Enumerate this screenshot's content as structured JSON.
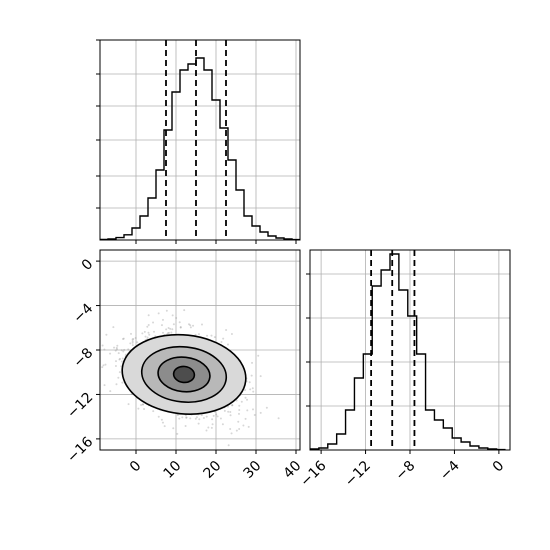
{
  "chart_data": {
    "type": "corner",
    "title": "",
    "grid": true,
    "colors": {
      "line": "#000000",
      "grid": "#b0b0b0",
      "points": "#8c8c8c"
    },
    "panels": [
      {
        "id": "hist_x",
        "type": "histogram",
        "xlim": [
          -9,
          41
        ],
        "ylim": [
          0,
          1.0
        ],
        "ytick_values": [
          0.16,
          0.32,
          0.5,
          0.67,
          0.83,
          1.0
        ],
        "bin_edges": [
          -9,
          -7,
          -5,
          -3,
          -1,
          1,
          3,
          5,
          7,
          9,
          11,
          13,
          15,
          17,
          19,
          21,
          23,
          25,
          27,
          29,
          31,
          33,
          35,
          37,
          39,
          41
        ],
        "counts": [
          0.003,
          0.005,
          0.012,
          0.026,
          0.06,
          0.12,
          0.21,
          0.35,
          0.55,
          0.74,
          0.85,
          0.88,
          0.91,
          0.85,
          0.7,
          0.56,
          0.4,
          0.25,
          0.12,
          0.07,
          0.04,
          0.02,
          0.01,
          0.005,
          0.002
        ],
        "quantiles": [
          7.5,
          15,
          22.5
        ]
      },
      {
        "id": "joint",
        "type": "2d-density",
        "xlim": [
          -9,
          41
        ],
        "ylim": [
          -17,
          1
        ],
        "xticks": [
          "0",
          "10",
          "20",
          "30",
          "40"
        ],
        "xtick_values": [
          0,
          10,
          20,
          30,
          40
        ],
        "yticks": [
          "0",
          "−4",
          "−8",
          "−12",
          "−16"
        ],
        "ytick_values": [
          0,
          -4,
          -8,
          -12,
          -16
        ],
        "center": [
          12,
          -10.2
        ],
        "contour_levels": [
          {
            "rx": 15.5,
            "ry": 3.55
          },
          {
            "rx": 10.6,
            "ry": 2.48
          },
          {
            "rx": 6.5,
            "ry": 1.55
          },
          {
            "rx": 2.6,
            "ry": 0.72
          }
        ]
      },
      {
        "id": "hist_y",
        "type": "histogram",
        "xlim": [
          -17,
          1
        ],
        "ylim": [
          0,
          1.0
        ],
        "xticks": [
          "−16",
          "−12",
          "−8",
          "−4",
          "0"
        ],
        "xtick_values": [
          -16,
          -12,
          -8,
          -4,
          0
        ],
        "ytick_values": [
          0.22,
          0.44,
          0.66,
          0.88
        ],
        "bin_edges": [
          -17,
          -16.2,
          -15.4,
          -14.6,
          -13.8,
          -13,
          -12.2,
          -11.4,
          -10.6,
          -9.8,
          -9,
          -8.2,
          -7.4,
          -6.6,
          -5.8,
          -5,
          -4.2,
          -3.4,
          -2.6,
          -1.8,
          -1,
          -0.2,
          0.6
        ],
        "counts": [
          0.005,
          0.01,
          0.03,
          0.08,
          0.2,
          0.36,
          0.48,
          0.82,
          0.9,
          0.98,
          0.8,
          0.67,
          0.48,
          0.2,
          0.15,
          0.11,
          0.06,
          0.04,
          0.02,
          0.01,
          0.005,
          0.002
        ],
        "quantiles": [
          -11.5,
          -9.6,
          -7.6
        ]
      }
    ]
  }
}
